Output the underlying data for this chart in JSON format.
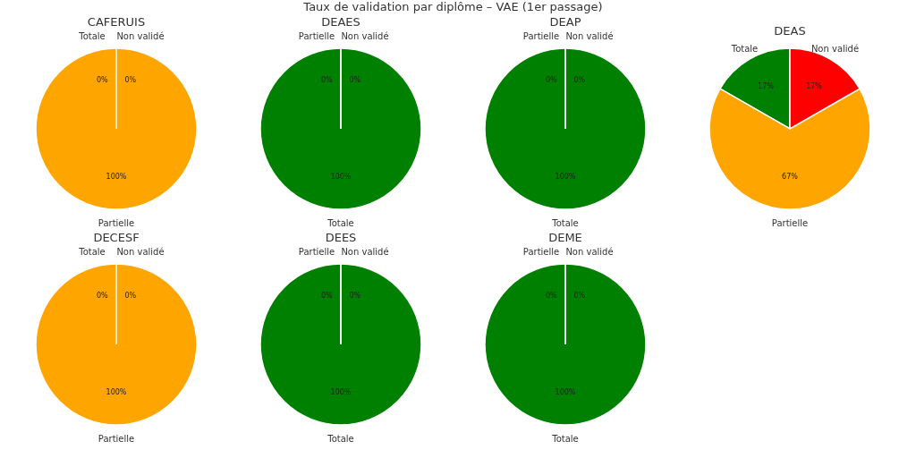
{
  "chart_data": [
    {
      "type": "pie",
      "title": "CAFERUIS",
      "annotations": [
        "Taux de validation par diplôme – VAE (1er passage)"
      ],
      "categories": [
        "Totale",
        "Partielle",
        "Non validé"
      ],
      "values": [
        0,
        100,
        0
      ],
      "value_labels": [
        "0%",
        "100%",
        "0%"
      ],
      "colors": [
        "#008000",
        "#ffa500",
        "#ff0000"
      ],
      "legend": false
    },
    {
      "type": "pie",
      "title": "DEAES",
      "categories": [
        "Totale",
        "Partielle",
        "Non validé"
      ],
      "values": [
        100,
        0,
        0
      ],
      "value_labels": [
        "100%",
        "0%",
        "0%"
      ],
      "colors": [
        "#008000",
        "#ffa500",
        "#ff0000"
      ],
      "legend": false
    },
    {
      "type": "pie",
      "title": "DEAP",
      "categories": [
        "Totale",
        "Partielle",
        "Non validé"
      ],
      "values": [
        100,
        0,
        0
      ],
      "value_labels": [
        "100%",
        "0%",
        "0%"
      ],
      "colors": [
        "#008000",
        "#ffa500",
        "#ff0000"
      ],
      "legend": false
    },
    {
      "type": "pie",
      "title": "DEAS",
      "categories": [
        "Totale",
        "Partielle",
        "Non validé"
      ],
      "values": [
        16.7,
        66.6,
        16.7
      ],
      "value_labels": [
        "17%",
        "67%",
        "17%"
      ],
      "colors": [
        "#008000",
        "#ffa500",
        "#ff0000"
      ],
      "legend": false
    },
    {
      "type": "pie",
      "title": "DECESF",
      "categories": [
        "Totale",
        "Partielle",
        "Non validé"
      ],
      "values": [
        0,
        100,
        0
      ],
      "value_labels": [
        "0%",
        "100%",
        "0%"
      ],
      "colors": [
        "#008000",
        "#ffa500",
        "#ff0000"
      ],
      "legend": false
    },
    {
      "type": "pie",
      "title": "DEES",
      "categories": [
        "Totale",
        "Partielle",
        "Non validé"
      ],
      "values": [
        100,
        0,
        0
      ],
      "value_labels": [
        "100%",
        "0%",
        "0%"
      ],
      "colors": [
        "#008000",
        "#ffa500",
        "#ff0000"
      ],
      "legend": false
    },
    {
      "type": "pie",
      "title": "DEME",
      "categories": [
        "Totale",
        "Partielle",
        "Non validé"
      ],
      "values": [
        100,
        0,
        0
      ],
      "value_labels": [
        "100%",
        "0%",
        "0%"
      ],
      "colors": [
        "#008000",
        "#ffa500",
        "#ff0000"
      ],
      "legend": false
    }
  ]
}
